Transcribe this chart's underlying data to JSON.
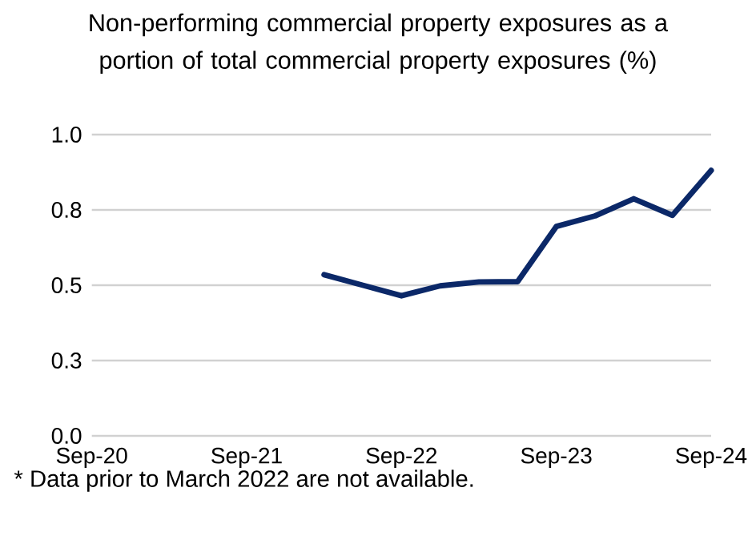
{
  "chart_data": {
    "type": "line",
    "title": "Non-performing commercial property exposures as a portion of total commercial property exposures (%)",
    "x": [
      "2022-03",
      "2022-06",
      "2022-09",
      "2022-12",
      "2023-03",
      "2023-06",
      "2023-09",
      "2023-12",
      "2024-03",
      "2024-06",
      "2024-09"
    ],
    "series": [
      {
        "color": "#0b2868",
        "values": [
          0.535,
          0.5,
          0.465,
          0.498,
          0.511,
          0.512,
          0.695,
          0.73,
          0.787,
          0.732,
          0.881
        ]
      }
    ],
    "xlim": [
      "2020-09",
      "2024-09"
    ],
    "xticks": [
      {
        "value": "2020-09",
        "label": "Sep-20"
      },
      {
        "value": "2021-09",
        "label": "Sep-21"
      },
      {
        "value": "2022-09",
        "label": "Sep-22"
      },
      {
        "value": "2023-09",
        "label": "Sep-23"
      },
      {
        "value": "2024-09",
        "label": "Sep-24"
      }
    ],
    "ylim": [
      0,
      1
    ],
    "yticks": [
      {
        "value": 0,
        "label": "0.0"
      },
      {
        "value": 0.25,
        "label": "0.3"
      },
      {
        "value": 0.5,
        "label": "0.5"
      },
      {
        "value": 0.75,
        "label": "0.8"
      },
      {
        "value": 1,
        "label": "1.0"
      }
    ],
    "grid": "y",
    "marker": "none",
    "line_style": "solid",
    "annotations": [
      "* Data prior to March 2022 are not available."
    ]
  }
}
